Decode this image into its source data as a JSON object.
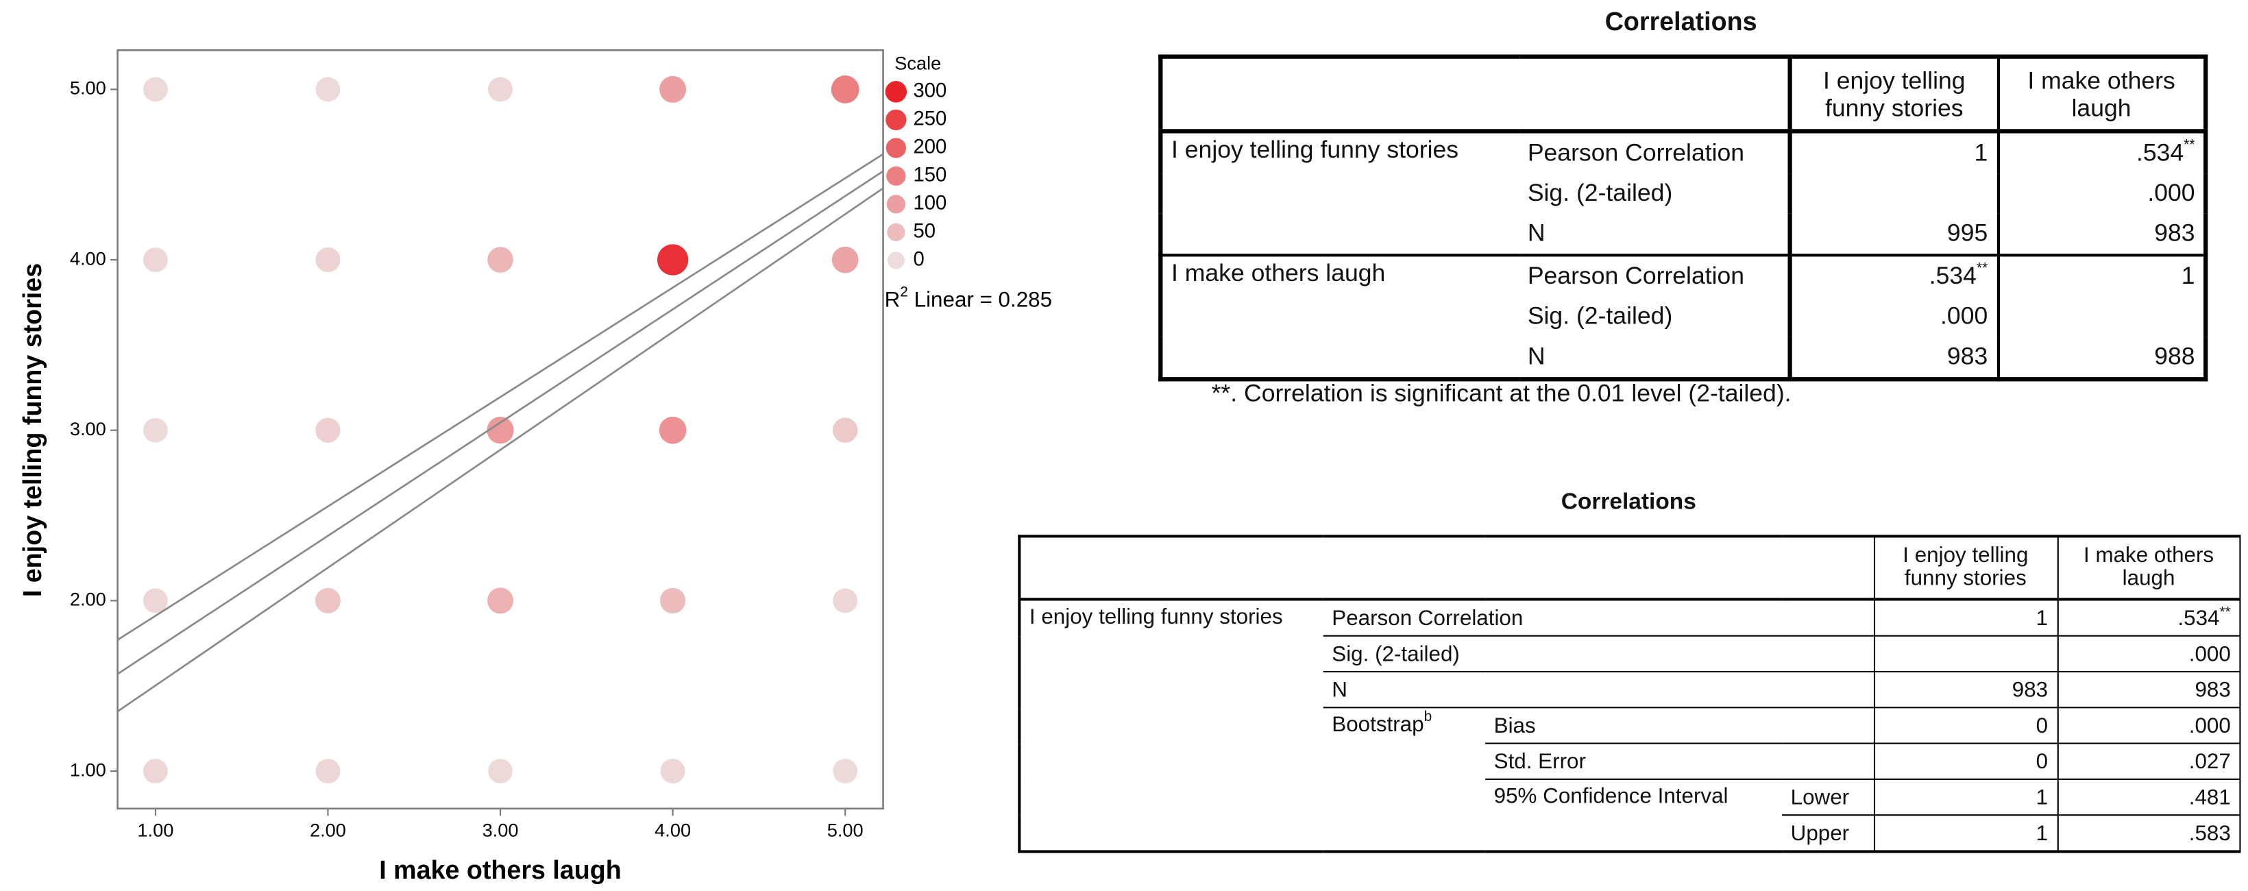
{
  "chart_data": {
    "type": "bubble",
    "xlabel": "I make others laugh",
    "ylabel": "I enjoy telling funny stories",
    "x": [
      1,
      2,
      3,
      4,
      5,
      1,
      2,
      3,
      4,
      5,
      1,
      2,
      3,
      4,
      5,
      1,
      2,
      3,
      4,
      5,
      1,
      2,
      3,
      4,
      5
    ],
    "y": [
      5,
      5,
      5,
      5,
      5,
      4,
      4,
      4,
      4,
      4,
      3,
      3,
      3,
      3,
      3,
      2,
      2,
      2,
      2,
      2,
      1,
      1,
      1,
      1,
      1
    ],
    "sizes": [
      5,
      5,
      10,
      100,
      150,
      10,
      15,
      60,
      280,
      90,
      5,
      20,
      110,
      120,
      30,
      10,
      40,
      70,
      50,
      10,
      10,
      10,
      5,
      10,
      5
    ],
    "color_scale": [
      "#eedcdc",
      "#e8242a"
    ],
    "xlim": [
      0.78,
      5.22
    ],
    "ylim": [
      0.78,
      5.23
    ],
    "xticks": [
      {
        "value": 1,
        "label": "1.00"
      },
      {
        "value": 2,
        "label": "2.00"
      },
      {
        "value": 3,
        "label": "3.00"
      },
      {
        "value": 4,
        "label": "4.00"
      },
      {
        "value": 5,
        "label": "5.00"
      }
    ],
    "yticks": [
      {
        "value": 1,
        "label": "1.00"
      },
      {
        "value": 2,
        "label": "2.00"
      },
      {
        "value": 3,
        "label": "3.00"
      },
      {
        "value": 4,
        "label": "4.00"
      },
      {
        "value": 5,
        "label": "5.00"
      }
    ],
    "legend_title": "Scale",
    "legend_values": [
      300,
      250,
      200,
      150,
      100,
      50,
      0
    ],
    "fit_lines": [
      {
        "x": [
          0.78,
          5.22
        ],
        "y": [
          1.77,
          4.62
        ]
      },
      {
        "x": [
          0.78,
          5.22
        ],
        "y": [
          1.57,
          4.52
        ]
      },
      {
        "x": [
          0.78,
          5.22
        ],
        "y": [
          1.35,
          4.42
        ]
      }
    ],
    "line_color": "#8a8a8a",
    "annotation": {
      "base": "R",
      "sup": "2",
      "text": " Linear = 0.285"
    }
  },
  "table1": {
    "title": "Correlations",
    "columns": [
      "I enjoy telling funny stories",
      "I make others laugh"
    ],
    "groups": [
      {
        "label": "I enjoy telling funny stories",
        "rows": [
          {
            "stat": "Pearson Correlation",
            "cells": [
              "1",
              ".534"
            ],
            "sup": "**"
          },
          {
            "stat": "Sig. (2-tailed)",
            "cells": [
              null,
              ".000"
            ]
          },
          {
            "stat": "N",
            "cells": [
              "995",
              "983"
            ]
          }
        ]
      },
      {
        "label": "I make others laugh",
        "rows": [
          {
            "stat": "Pearson Correlation",
            "cells": [
              ".534",
              "1"
            ],
            "sup": "**"
          },
          {
            "stat": "Sig. (2-tailed)",
            "cells": [
              ".000",
              null
            ]
          },
          {
            "stat": "N",
            "cells": [
              "983",
              "988"
            ]
          }
        ]
      }
    ],
    "footnote": "**. Correlation is significant at the 0.01 level (2-tailed)."
  },
  "table2": {
    "title": "Correlations",
    "columns": [
      "I enjoy telling funny stories",
      "I make others laugh"
    ],
    "group": "I enjoy telling funny stories",
    "rows": [
      {
        "stat": "Pearson Correlation",
        "cells": [
          "1",
          ".534"
        ],
        "sup": "**"
      },
      {
        "stat": "Sig. (2-tailed)",
        "cells": [
          null,
          ".000"
        ]
      },
      {
        "stat": "N",
        "cells": [
          "983",
          "983"
        ]
      }
    ],
    "bootstrap": {
      "label": "Bootstrap",
      "sup": "b",
      "bias": {
        "stat": "Bias",
        "cells": [
          "0",
          ".000"
        ]
      },
      "std_error": {
        "stat": "Std. Error",
        "cells": [
          "0",
          ".027"
        ]
      },
      "ci": {
        "label": "95% Confidence Interval",
        "lower": {
          "stat": "Lower",
          "cells": [
            "1",
            ".481"
          ]
        },
        "upper": {
          "stat": "Upper",
          "cells": [
            "1",
            ".583"
          ]
        }
      }
    }
  }
}
